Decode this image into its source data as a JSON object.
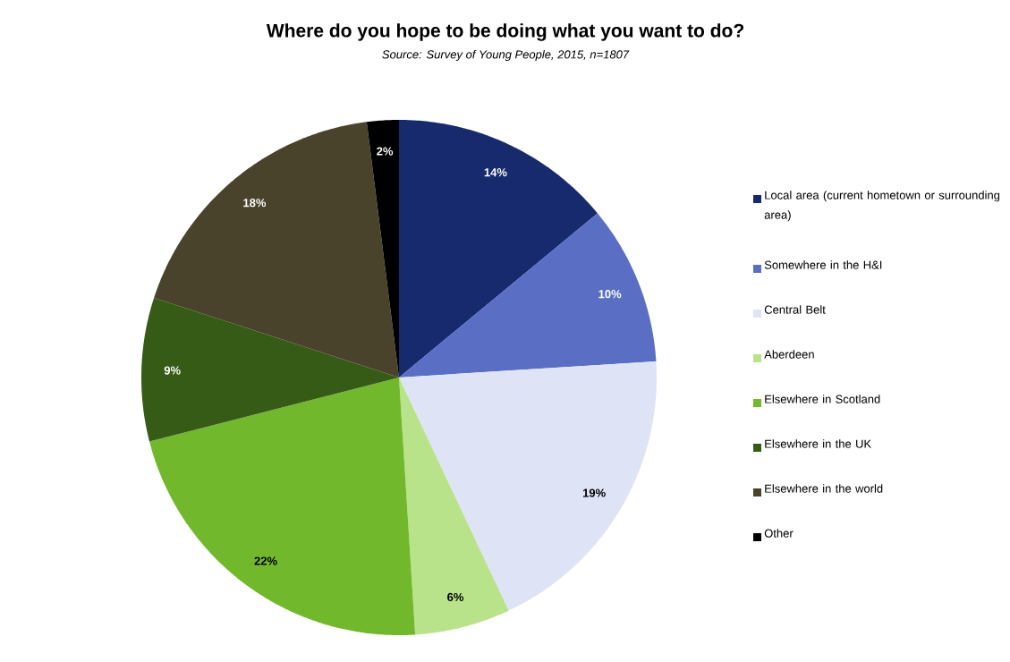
{
  "chart_data": {
    "type": "pie",
    "title": "Where do you hope to be doing what you want to do?",
    "annotations": [
      "Source: Survey of Young People, 2015, n=1807"
    ],
    "categories": [
      "Local area (current hometown or surrounding area)",
      "Somewhere in the H&I",
      "Central Belt",
      "Aberdeen",
      "Elsewhere in Scotland",
      "Elsewhere in the UK",
      "Elsewhere in the world",
      "Other"
    ],
    "values": [
      14,
      10,
      19,
      6,
      22,
      9,
      18,
      2
    ],
    "value_labels": [
      "14%",
      "10%",
      "19%",
      "6%",
      "22%",
      "9%",
      "18%",
      "2%"
    ],
    "colors": [
      "#172a6e",
      "#5a6fc4",
      "#dfe3f6",
      "#b9e38a",
      "#72b82c",
      "#365b17",
      "#4a432b",
      "#000000"
    ],
    "legend": "right"
  }
}
